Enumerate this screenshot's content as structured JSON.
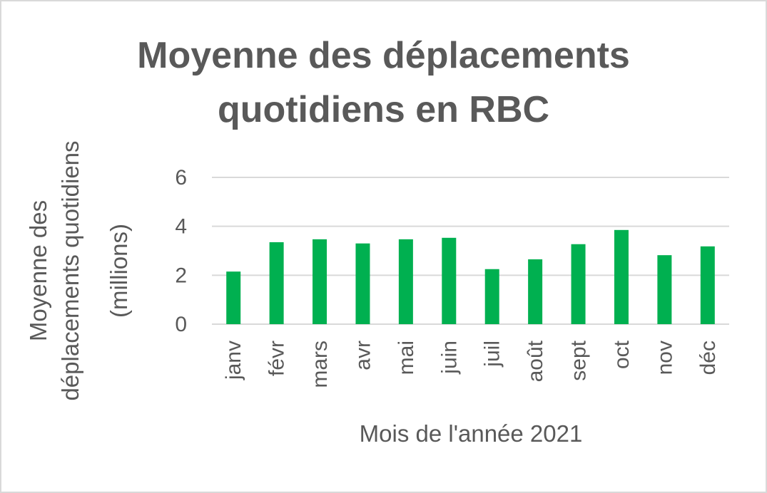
{
  "chart_data": {
    "type": "bar",
    "title_lines": [
      "Moyenne des déplacements",
      "quotidiens en RBC"
    ],
    "xlabel": "Mois de l'année 2021",
    "ylabel_lines": [
      "Moyenne des",
      "déplacements quotidiens",
      "(millions)"
    ],
    "categories": [
      "janv",
      "févr",
      "mars",
      "avr",
      "mai",
      "juin",
      "juil",
      "août",
      "sept",
      "oct",
      "nov",
      "déc"
    ],
    "values": [
      2.15,
      3.35,
      3.47,
      3.3,
      3.47,
      3.53,
      2.25,
      2.65,
      3.27,
      3.85,
      2.82,
      3.18
    ],
    "ylim": [
      0,
      6
    ],
    "yticks": [
      "0",
      "2",
      "4",
      "6"
    ],
    "grid": true,
    "bar_color": "#00b050",
    "grid_color": "#d9d9d9"
  }
}
